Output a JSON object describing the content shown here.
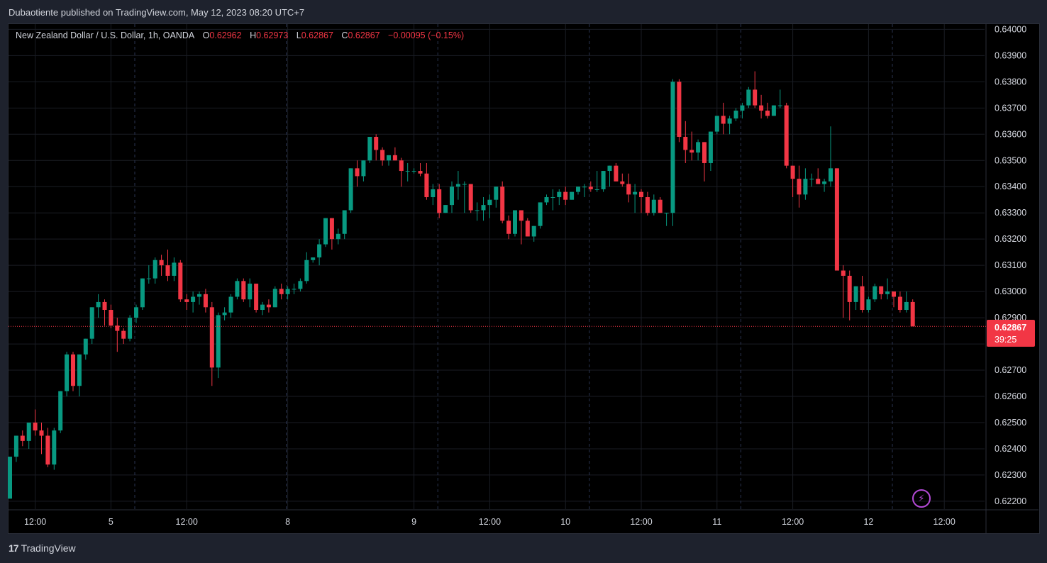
{
  "header": {
    "publisher_line": "Dubaotiente published on TradingView.com, May 12, 2023 08:20 UTC+7"
  },
  "legend": {
    "symbol": "New Zealand Dollar / U.S. Dollar, 1h, OANDA",
    "o_label": "O",
    "o_value": "0.62962",
    "h_label": "H",
    "h_value": "0.62973",
    "l_label": "L",
    "l_value": "0.62867",
    "c_label": "C",
    "c_value": "0.62867",
    "change": "−0.00095 (−0.15%)"
  },
  "last_price": {
    "price": "0.62867",
    "countdown": "39:25"
  },
  "footer": {
    "brand": "TradingView",
    "brand_mark": "17"
  },
  "icons": {
    "alert": "lightning-icon"
  },
  "colors": {
    "up": "#089981",
    "down": "#f23645",
    "background": "#000000",
    "grid": "#1a1d24"
  },
  "chart_data": {
    "type": "candlestick",
    "symbol": "NZDUSD",
    "interval": "1h",
    "ylim": [
      0.6217,
      0.6402
    ],
    "y_ticks": [
      "0.64000",
      "0.63900",
      "0.63800",
      "0.63700",
      "0.63600",
      "0.63500",
      "0.63400",
      "0.63300",
      "0.63200",
      "0.63100",
      "0.63000",
      "0.62900",
      "0.62800",
      "0.62700",
      "0.62600",
      "0.62500",
      "0.62400",
      "0.62300",
      "0.62200"
    ],
    "x_tick_labels": [
      "12:00",
      "5",
      "12:00",
      "8",
      "9",
      "12:00",
      "10",
      "12:00",
      "11",
      "12:00",
      "12",
      "12:00"
    ],
    "x_tick_candle_index": [
      4,
      16,
      28,
      44,
      64,
      76,
      88,
      100,
      112,
      124,
      136,
      148
    ],
    "candles_ohlc": [
      [
        0.6221,
        0.6237,
        0.6221,
        0.6237
      ],
      [
        0.6237,
        0.6245,
        0.6235,
        0.6245
      ],
      [
        0.6245,
        0.6247,
        0.6241,
        0.6243
      ],
      [
        0.6243,
        0.625,
        0.624,
        0.625
      ],
      [
        0.625,
        0.6255,
        0.6245,
        0.6247
      ],
      [
        0.6247,
        0.625,
        0.6238,
        0.6245
      ],
      [
        0.6245,
        0.6248,
        0.6233,
        0.6234
      ],
      [
        0.6234,
        0.6248,
        0.6232,
        0.6247
      ],
      [
        0.6247,
        0.6262,
        0.6246,
        0.6262
      ],
      [
        0.6262,
        0.6277,
        0.626,
        0.6276
      ],
      [
        0.6276,
        0.6277,
        0.6262,
        0.6264
      ],
      [
        0.6264,
        0.6276,
        0.626,
        0.6276
      ],
      [
        0.6276,
        0.6282,
        0.6274,
        0.6282
      ],
      [
        0.6282,
        0.6294,
        0.628,
        0.6294
      ],
      [
        0.6294,
        0.6299,
        0.629,
        0.6296
      ],
      [
        0.6296,
        0.6297,
        0.6287,
        0.6293
      ],
      [
        0.6293,
        0.6295,
        0.6286,
        0.6287
      ],
      [
        0.6287,
        0.629,
        0.6277,
        0.6285
      ],
      [
        0.6285,
        0.6286,
        0.628,
        0.6282
      ],
      [
        0.6282,
        0.6291,
        0.6281,
        0.629
      ],
      [
        0.629,
        0.6295,
        0.6288,
        0.6294
      ],
      [
        0.6294,
        0.6305,
        0.6293,
        0.6305
      ],
      [
        0.6305,
        0.631,
        0.6303,
        0.6305
      ],
      [
        0.6305,
        0.6313,
        0.6303,
        0.6312
      ],
      [
        0.6312,
        0.6314,
        0.6306,
        0.631
      ],
      [
        0.631,
        0.6316,
        0.6304,
        0.6306
      ],
      [
        0.6306,
        0.6313,
        0.6304,
        0.6311
      ],
      [
        0.6311,
        0.6312,
        0.6296,
        0.6297
      ],
      [
        0.6297,
        0.6299,
        0.6293,
        0.6296
      ],
      [
        0.6296,
        0.63,
        0.6292,
        0.6298
      ],
      [
        0.6298,
        0.63,
        0.6295,
        0.6299
      ],
      [
        0.6299,
        0.6301,
        0.6292,
        0.6294
      ],
      [
        0.6294,
        0.6296,
        0.6264,
        0.6271
      ],
      [
        0.6271,
        0.6292,
        0.6267,
        0.6291
      ],
      [
        0.6291,
        0.6294,
        0.6289,
        0.6292
      ],
      [
        0.6292,
        0.6299,
        0.629,
        0.6298
      ],
      [
        0.6298,
        0.6305,
        0.6297,
        0.6304
      ],
      [
        0.6304,
        0.6305,
        0.6296,
        0.6297
      ],
      [
        0.6297,
        0.6305,
        0.6294,
        0.6303
      ],
      [
        0.6303,
        0.6303,
        0.6292,
        0.6293
      ],
      [
        0.6293,
        0.6296,
        0.6291,
        0.6295
      ],
      [
        0.6295,
        0.6297,
        0.6292,
        0.6294
      ],
      [
        0.6294,
        0.6302,
        0.6294,
        0.6301
      ],
      [
        0.6301,
        0.6303,
        0.6297,
        0.6299
      ],
      [
        0.6299,
        0.6302,
        0.6297,
        0.6301
      ],
      [
        0.6301,
        0.6303,
        0.6299,
        0.6301
      ],
      [
        0.6301,
        0.6305,
        0.63,
        0.6304
      ],
      [
        0.6304,
        0.6315,
        0.6303,
        0.6312
      ],
      [
        0.6312,
        0.6313,
        0.6311,
        0.6313
      ],
      [
        0.6313,
        0.632,
        0.631,
        0.6318
      ],
      [
        0.6318,
        0.6328,
        0.6317,
        0.6328
      ],
      [
        0.6328,
        0.6328,
        0.6316,
        0.632
      ],
      [
        0.632,
        0.6324,
        0.6318,
        0.6322
      ],
      [
        0.6322,
        0.633,
        0.632,
        0.6331
      ],
      [
        0.6331,
        0.6347,
        0.633,
        0.6347
      ],
      [
        0.6347,
        0.635,
        0.634,
        0.6344
      ],
      [
        0.6344,
        0.635,
        0.6342,
        0.635
      ],
      [
        0.635,
        0.6359,
        0.6349,
        0.6359
      ],
      [
        0.6359,
        0.636,
        0.635,
        0.6354
      ],
      [
        0.6354,
        0.6355,
        0.6348,
        0.635
      ],
      [
        0.635,
        0.6352,
        0.6348,
        0.6352
      ],
      [
        0.6352,
        0.6355,
        0.635,
        0.635
      ],
      [
        0.635,
        0.6351,
        0.634,
        0.6346
      ],
      [
        0.6346,
        0.6349,
        0.6342,
        0.6346
      ],
      [
        0.6346,
        0.6347,
        0.6345,
        0.6346
      ],
      [
        0.6346,
        0.6349,
        0.6344,
        0.6345
      ],
      [
        0.6345,
        0.6349,
        0.6335,
        0.6336
      ],
      [
        0.6336,
        0.6341,
        0.6333,
        0.6339
      ],
      [
        0.6339,
        0.6341,
        0.6328,
        0.633
      ],
      [
        0.633,
        0.6333,
        0.633,
        0.6333
      ],
      [
        0.6333,
        0.6342,
        0.633,
        0.634
      ],
      [
        0.634,
        0.6346,
        0.6335,
        0.6341
      ],
      [
        0.6341,
        0.6342,
        0.633,
        0.6341
      ],
      [
        0.6341,
        0.6341,
        0.633,
        0.6331
      ],
      [
        0.6331,
        0.6334,
        0.6327,
        0.6331
      ],
      [
        0.6331,
        0.6336,
        0.6327,
        0.6333
      ],
      [
        0.6333,
        0.6337,
        0.6328,
        0.6335
      ],
      [
        0.6335,
        0.634,
        0.6332,
        0.634
      ],
      [
        0.634,
        0.6342,
        0.6326,
        0.6327
      ],
      [
        0.6327,
        0.6329,
        0.632,
        0.6322
      ],
      [
        0.6322,
        0.6331,
        0.6321,
        0.6331
      ],
      [
        0.6331,
        0.6331,
        0.6318,
        0.6327
      ],
      [
        0.6327,
        0.6328,
        0.6321,
        0.6321
      ],
      [
        0.6321,
        0.6325,
        0.6319,
        0.6325
      ],
      [
        0.6325,
        0.6334,
        0.6324,
        0.6334
      ],
      [
        0.6334,
        0.6337,
        0.6333,
        0.6336
      ],
      [
        0.6336,
        0.6339,
        0.6331,
        0.6336
      ],
      [
        0.6336,
        0.6339,
        0.6333,
        0.6338
      ],
      [
        0.6338,
        0.634,
        0.6333,
        0.6335
      ],
      [
        0.6335,
        0.6338,
        0.6335,
        0.6338
      ],
      [
        0.6338,
        0.634,
        0.6337,
        0.634
      ],
      [
        0.634,
        0.6341,
        0.6336,
        0.634
      ],
      [
        0.634,
        0.6342,
        0.6338,
        0.6339
      ],
      [
        0.6339,
        0.6346,
        0.6338,
        0.6339
      ],
      [
        0.6339,
        0.6346,
        0.6338,
        0.6346
      ],
      [
        0.6346,
        0.6348,
        0.634,
        0.6348
      ],
      [
        0.6348,
        0.6349,
        0.6342,
        0.6342
      ],
      [
        0.6342,
        0.6345,
        0.634,
        0.6341
      ],
      [
        0.6341,
        0.6345,
        0.6334,
        0.6337
      ],
      [
        0.6337,
        0.6341,
        0.633,
        0.6338
      ],
      [
        0.6338,
        0.6339,
        0.633,
        0.6336
      ],
      [
        0.6336,
        0.6338,
        0.6329,
        0.633
      ],
      [
        0.633,
        0.6337,
        0.6329,
        0.6335
      ],
      [
        0.6335,
        0.6336,
        0.633,
        0.633
      ],
      [
        0.633,
        0.633,
        0.6325,
        0.633
      ],
      [
        0.633,
        0.6381,
        0.6325,
        0.638
      ],
      [
        0.638,
        0.6381,
        0.6357,
        0.6359
      ],
      [
        0.6359,
        0.6365,
        0.6349,
        0.6354
      ],
      [
        0.6354,
        0.6361,
        0.635,
        0.6353
      ],
      [
        0.6353,
        0.6358,
        0.635,
        0.6357
      ],
      [
        0.6357,
        0.6357,
        0.6342,
        0.6349
      ],
      [
        0.6349,
        0.6361,
        0.6346,
        0.6361
      ],
      [
        0.6361,
        0.6367,
        0.636,
        0.6367
      ],
      [
        0.6367,
        0.6372,
        0.636,
        0.6364
      ],
      [
        0.6364,
        0.6367,
        0.636,
        0.6366
      ],
      [
        0.6366,
        0.637,
        0.6365,
        0.6369
      ],
      [
        0.6369,
        0.6372,
        0.6366,
        0.6371
      ],
      [
        0.6371,
        0.6378,
        0.637,
        0.6377
      ],
      [
        0.6377,
        0.6384,
        0.637,
        0.6371
      ],
      [
        0.6371,
        0.6375,
        0.6366,
        0.6369
      ],
      [
        0.6369,
        0.6372,
        0.6366,
        0.6367
      ],
      [
        0.6367,
        0.6371,
        0.6367,
        0.6371
      ],
      [
        0.6371,
        0.6377,
        0.637,
        0.6371
      ],
      [
        0.6371,
        0.6372,
        0.6347,
        0.6348
      ],
      [
        0.6348,
        0.6348,
        0.6336,
        0.6343
      ],
      [
        0.6343,
        0.6348,
        0.6332,
        0.6337
      ],
      [
        0.6337,
        0.6347,
        0.6335,
        0.6343
      ],
      [
        0.6343,
        0.6345,
        0.634,
        0.6343
      ],
      [
        0.6343,
        0.6347,
        0.6342,
        0.6341
      ],
      [
        0.6341,
        0.6343,
        0.6338,
        0.6342
      ],
      [
        0.6342,
        0.6363,
        0.634,
        0.6347
      ],
      [
        0.6347,
        0.6347,
        0.6308,
        0.6308
      ],
      [
        0.6308,
        0.631,
        0.629,
        0.6306
      ],
      [
        0.6306,
        0.6308,
        0.6289,
        0.6296
      ],
      [
        0.6296,
        0.6302,
        0.6293,
        0.6302
      ],
      [
        0.6302,
        0.6306,
        0.6292,
        0.6293
      ],
      [
        0.6293,
        0.6298,
        0.6292,
        0.6297
      ],
      [
        0.6297,
        0.6303,
        0.6296,
        0.6302
      ],
      [
        0.6302,
        0.6302,
        0.6297,
        0.6299
      ],
      [
        0.6299,
        0.6305,
        0.6297,
        0.63
      ],
      [
        0.63,
        0.63,
        0.6294,
        0.6298
      ],
      [
        0.6298,
        0.63,
        0.6292,
        0.6293
      ],
      [
        0.6293,
        0.63,
        0.6292,
        0.6296
      ],
      [
        0.6296,
        0.6297,
        0.62867,
        0.62867
      ]
    ]
  }
}
